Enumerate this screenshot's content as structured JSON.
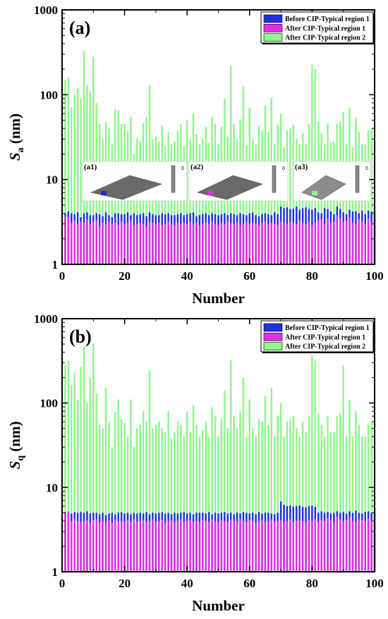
{
  "colors": {
    "before": "#1f2ee0",
    "after1": "#e02fe0",
    "after2": "#8ff58c",
    "frame": "#000000"
  },
  "chart_data": [
    {
      "type": "bar",
      "panel_label": "(a)",
      "ylabel_main": "S",
      "ylabel_sub": "a",
      "ylabel_unit": " (nm)",
      "xlabel": "Number",
      "yscale": "log",
      "ylim": [
        1,
        1000
      ],
      "xlim": [
        0,
        100
      ],
      "x_ticks": [
        0,
        20,
        40,
        60,
        80,
        100
      ],
      "y_ticks": [
        {
          "value": 1,
          "label": "1"
        },
        {
          "value": 10,
          "label": "10"
        },
        {
          "value": 100,
          "label": "100"
        },
        {
          "value": 1000,
          "label": "1000"
        }
      ],
      "legend": [
        "Before CIP-Typical region 1",
        "After CIP-Typical region 1",
        "After CIP-Typical region 2"
      ],
      "insets": [
        "(a1)",
        "(a2)",
        "(a3)"
      ],
      "inset_scale_labels": [
        "0",
        "0",
        "0"
      ],
      "series": [
        {
          "name": "Before CIP-Typical region 1",
          "color_key": "before",
          "values": [
            4.0,
            4.2,
            4.0,
            3.9,
            4.1,
            3.6,
            4.0,
            4.1,
            3.8,
            3.8,
            4.0,
            3.9,
            3.7,
            4.1,
            3.8,
            3.6,
            4.0,
            4.0,
            3.9,
            3.9,
            4.1,
            3.8,
            4.0,
            3.8,
            3.9,
            4.0,
            3.7,
            4.1,
            3.9,
            3.8,
            3.8,
            4.0,
            3.9,
            4.0,
            3.8,
            3.8,
            3.9,
            4.0,
            3.8,
            3.9,
            4.0,
            4.1,
            3.7,
            3.8,
            3.9,
            4.0,
            3.8,
            4.0,
            3.9,
            3.8,
            3.9,
            4.0,
            3.8,
            4.0,
            3.9,
            3.8,
            4.0,
            3.9,
            3.8,
            4.0,
            4.1,
            3.8,
            3.7,
            3.9,
            4.0,
            3.9,
            3.8,
            4.1,
            3.9,
            4.8,
            4.6,
            4.7,
            4.5,
            4.5,
            4.8,
            4.4,
            4.6,
            4.7,
            4.5,
            4.4,
            4.6,
            4.1,
            4.0,
            4.6,
            4.5,
            4.2,
            3.9,
            4.8,
            4.5,
            4.1,
            3.9,
            4.4,
            4.2,
            4.2,
            4.0,
            4.3,
            3.9,
            4.3,
            4.2,
            4.3
          ]
        },
        {
          "name": "After CIP-Typical region 1",
          "color_key": "after1",
          "values": [
            3.7,
            3.6,
            3.1,
            3.3,
            3.0,
            3.2,
            3.1,
            3.4,
            3.0,
            3.2,
            3.3,
            2.8,
            3.1,
            3.0,
            3.2,
            3.0,
            3.1,
            2.9,
            3.2,
            3.0,
            3.1,
            3.3,
            2.9,
            3.0,
            3.1,
            3.0,
            2.8,
            3.2,
            3.1,
            3.0,
            3.1,
            2.9,
            3.0,
            3.2,
            3.0,
            2.9,
            3.1,
            3.0,
            3.1,
            3.0,
            3.2,
            3.0,
            3.1,
            2.9,
            3.0,
            3.1,
            3.0,
            3.2,
            3.0,
            2.9,
            3.1,
            3.0,
            3.2,
            3.1,
            3.0,
            3.1,
            2.9,
            3.0,
            3.2,
            3.0,
            3.1,
            3.0,
            2.9,
            3.1,
            3.2,
            3.0,
            3.1,
            3.0,
            2.9,
            3.2,
            3.1,
            3.0,
            3.2,
            3.1,
            3.0,
            3.3,
            3.1,
            3.0,
            3.2,
            2.9,
            3.1,
            3.3,
            3.4,
            3.0,
            3.5,
            3.1,
            3.2,
            3.8,
            3.5,
            3.2,
            3.3,
            3.6,
            3.1,
            3.0,
            3.4,
            3.2,
            3.0,
            3.5,
            3.1,
            3.3
          ]
        },
        {
          "name": "After CIP-Typical region 2",
          "color_key": "after2",
          "values": [
            150,
            160,
            70,
            100,
            120,
            90,
            330,
            130,
            110,
            280,
            80,
            45,
            30,
            48,
            40,
            26,
            66,
            65,
            45,
            45,
            37,
            55,
            20,
            30,
            28,
            46,
            55,
            130,
            30,
            32,
            28,
            43,
            25,
            36,
            26,
            28,
            38,
            45,
            25,
            50,
            30,
            60,
            34,
            26,
            30,
            42,
            27,
            55,
            45,
            26,
            42,
            90,
            32,
            220,
            45,
            30,
            50,
            125,
            25,
            70,
            30,
            26,
            43,
            38,
            75,
            36,
            92,
            26,
            44,
            60,
            24,
            38,
            40,
            44,
            30,
            26,
            35,
            26,
            45,
            225,
            200,
            48,
            35,
            26,
            46,
            28,
            28,
            45,
            48,
            62,
            26,
            70,
            24,
            54,
            36,
            26,
            26,
            38,
            40,
            28
          ]
        }
      ]
    },
    {
      "type": "bar",
      "panel_label": "(b)",
      "ylabel_main": "S",
      "ylabel_sub": "q",
      "ylabel_unit": " (nm)",
      "xlabel": "Number",
      "yscale": "log",
      "ylim": [
        1,
        1000
      ],
      "xlim": [
        0,
        100
      ],
      "x_ticks": [
        0,
        20,
        40,
        60,
        80,
        100
      ],
      "y_ticks": [
        {
          "value": 1,
          "label": "1"
        },
        {
          "value": 10,
          "label": "10"
        },
        {
          "value": 100,
          "label": "100"
        },
        {
          "value": 1000,
          "label": "1000"
        }
      ],
      "legend": [
        "Before CIP-Typical region 1",
        "After CIP-Typical region 1",
        "After CIP-Typical region 2"
      ],
      "series": [
        {
          "name": "Before CIP-Typical region 1",
          "color_key": "before",
          "values": [
            5.1,
            5.0,
            4.9,
            5.1,
            5.0,
            5.1,
            5.0,
            5.2,
            4.9,
            5.0,
            5.0,
            4.8,
            5.0,
            4.7,
            4.9,
            5.0,
            4.8,
            5.0,
            5.1,
            4.9,
            5.0,
            4.8,
            5.0,
            4.9,
            5.0,
            4.9,
            5.1,
            4.8,
            5.0,
            4.9,
            5.0,
            5.1,
            4.9,
            5.0,
            4.8,
            5.0,
            4.9,
            5.0,
            5.1,
            4.9,
            5.0,
            4.8,
            5.0,
            5.0,
            5.0,
            4.9,
            5.1,
            4.8,
            5.0,
            4.9,
            5.0,
            5.1,
            4.9,
            5.0,
            4.8,
            5.0,
            4.9,
            5.1,
            5.0,
            4.9,
            5.0,
            4.8,
            5.1,
            4.9,
            5.0,
            5.0,
            4.9,
            4.8,
            5.0,
            6.8,
            6.2,
            6.0,
            6.1,
            5.9,
            6.0,
            6.1,
            5.9,
            5.8,
            6.0,
            6.1,
            5.9,
            5.0,
            5.2,
            5.0,
            5.1,
            4.9,
            5.0,
            5.2,
            5.0,
            5.1,
            4.9,
            5.2,
            5.0,
            5.3,
            5.0,
            4.9,
            5.1,
            5.2,
            5.0,
            5.3
          ]
        },
        {
          "name": "After CIP-Typical region 1",
          "color_key": "after1",
          "values": [
            5.0,
            5.2,
            4.0,
            4.2,
            4.0,
            3.9,
            4.0,
            4.1,
            3.8,
            4.1,
            4.2,
            3.9,
            4.0,
            3.9,
            4.1,
            3.8,
            4.1,
            4.0,
            4.0,
            3.9,
            4.1,
            3.9,
            4.2,
            3.9,
            4.0,
            4.1,
            3.9,
            4.0,
            4.2,
            3.9,
            4.0,
            4.1,
            3.8,
            4.0,
            4.1,
            3.9,
            4.0,
            4.2,
            3.9,
            4.0,
            4.1,
            3.9,
            4.0,
            3.9,
            4.1,
            4.0,
            3.9,
            4.2,
            4.0,
            3.9,
            4.1,
            4.0,
            3.9,
            4.1,
            4.0,
            3.9,
            4.2,
            4.0,
            3.9,
            4.1,
            4.0,
            3.8,
            4.0,
            4.1,
            3.9,
            4.0,
            4.2,
            3.9,
            4.0,
            4.1,
            3.9,
            4.0,
            4.2,
            3.9,
            4.0,
            4.1,
            4.0,
            3.9,
            4.1,
            4.0,
            4.2,
            3.9,
            4.1,
            4.0,
            4.3,
            4.1,
            3.9,
            4.5,
            4.2,
            4.0,
            4.1,
            4.4,
            4.0,
            3.9,
            4.2,
            4.1,
            4.0,
            4.3,
            4.1,
            4.2
          ]
        },
        {
          "name": "After CIP-Typical region 2",
          "color_key": "after2",
          "values": [
            280,
            320,
            160,
            230,
            110,
            270,
            470,
            100,
            200,
            510,
            130,
            55,
            50,
            150,
            60,
            30,
            78,
            110,
            64,
            58,
            40,
            110,
            30,
            50,
            55,
            80,
            60,
            240,
            50,
            55,
            60,
            50,
            45,
            80,
            38,
            45,
            60,
            55,
            40,
            80,
            45,
            95,
            55,
            40,
            48,
            60,
            40,
            90,
            70,
            40,
            65,
            140,
            50,
            320,
            70,
            50,
            80,
            200,
            40,
            110,
            50,
            40,
            65,
            60,
            120,
            55,
            150,
            40,
            70,
            100,
            40,
            60,
            65,
            70,
            50,
            40,
            60,
            45,
            70,
            370,
            320,
            75,
            55,
            40,
            70,
            45,
            45,
            70,
            75,
            280,
            40,
            110,
            40,
            80,
            55,
            40,
            40,
            55,
            60,
            45
          ]
        }
      ]
    }
  ]
}
